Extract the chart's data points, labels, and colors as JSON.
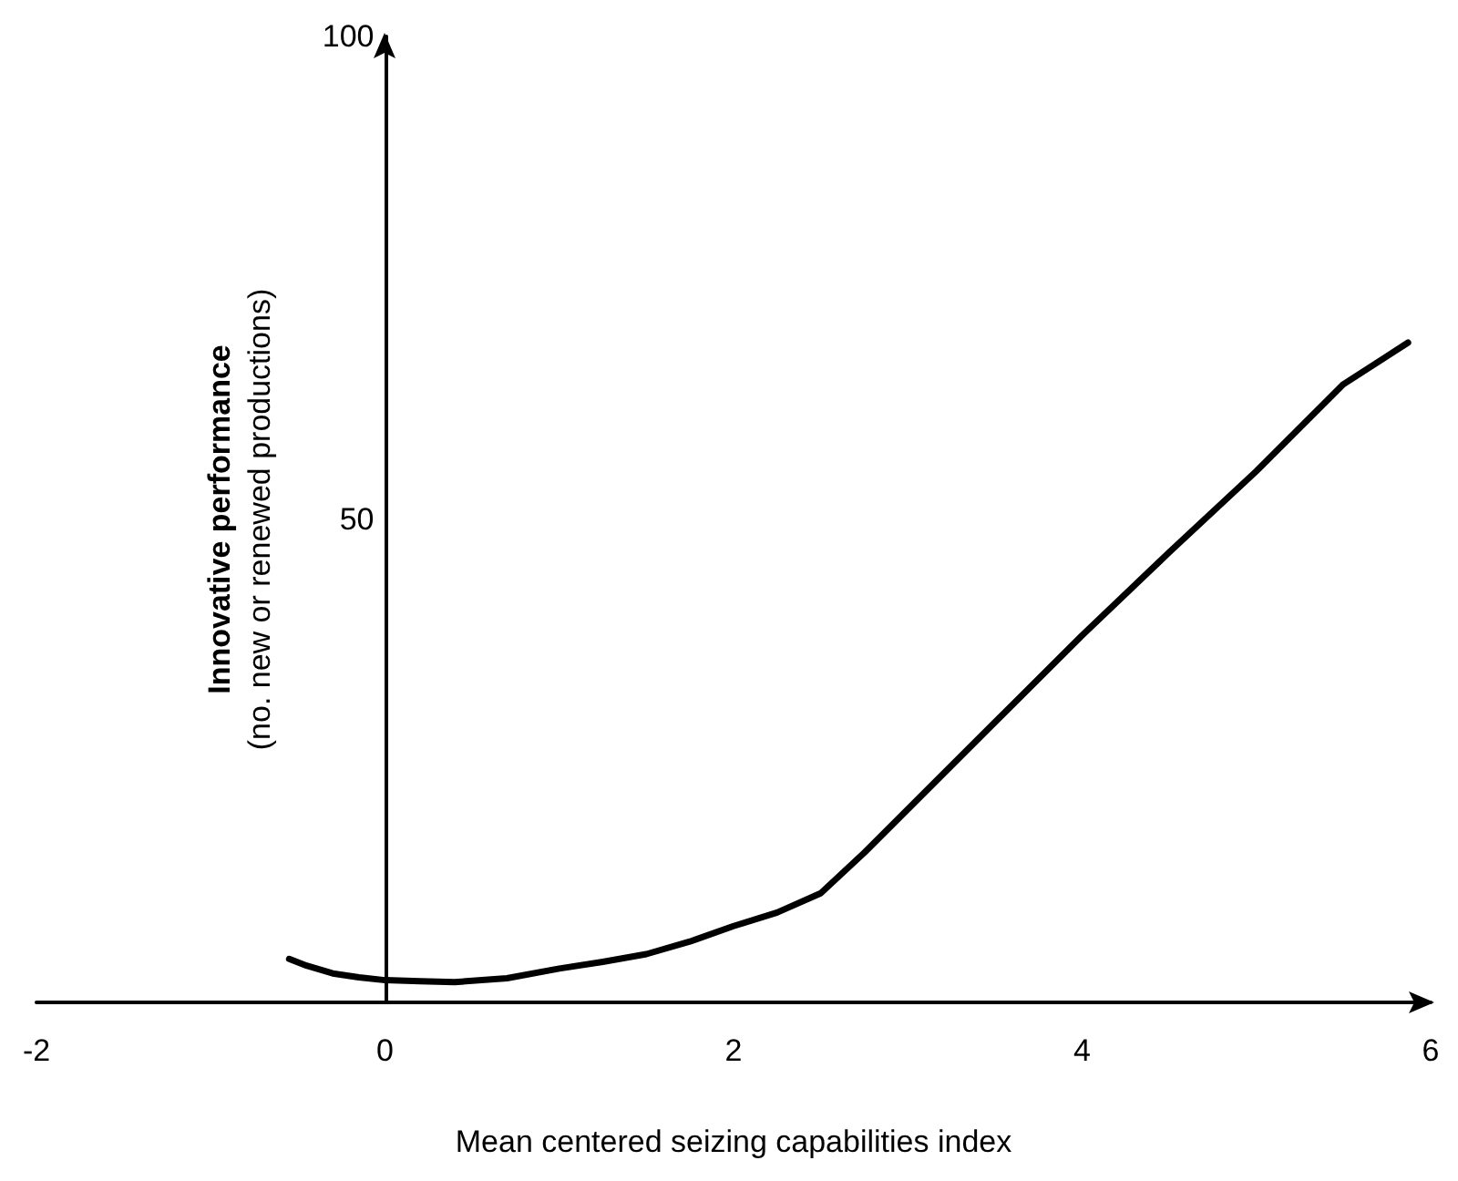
{
  "chart_data": {
    "type": "line",
    "xlabel": "Mean centered seizing capabilities index",
    "ylabel": "Innovative performance\n(no. new or renewed productions)",
    "x": [
      -0.55,
      -0.45,
      -0.3,
      -0.15,
      0,
      0.2,
      0.4,
      0.7,
      1,
      1.25,
      1.5,
      1.75,
      2,
      2.25,
      2.5,
      2.75,
      3,
      3.5,
      4,
      4.5,
      5,
      5.5,
      5.87
    ],
    "series": [
      {
        "color": "#000000",
        "values": [
          4.5,
          3.8,
          3,
          2.6,
          2.3,
          2.2,
          2.1,
          2.5,
          3.5,
          4.2,
          5,
          6.3,
          7.9,
          9.3,
          11.3,
          15.5,
          20,
          29,
          38,
          46.6,
          55,
          64,
          68.3
        ]
      }
    ],
    "xlim": [
      -2,
      6
    ],
    "xticks": [
      -2,
      0,
      2,
      4,
      6
    ],
    "ylim": [
      0,
      100
    ],
    "yticks": [
      50,
      100
    ],
    "grid": false,
    "marker": "none",
    "line_style": "solid"
  }
}
